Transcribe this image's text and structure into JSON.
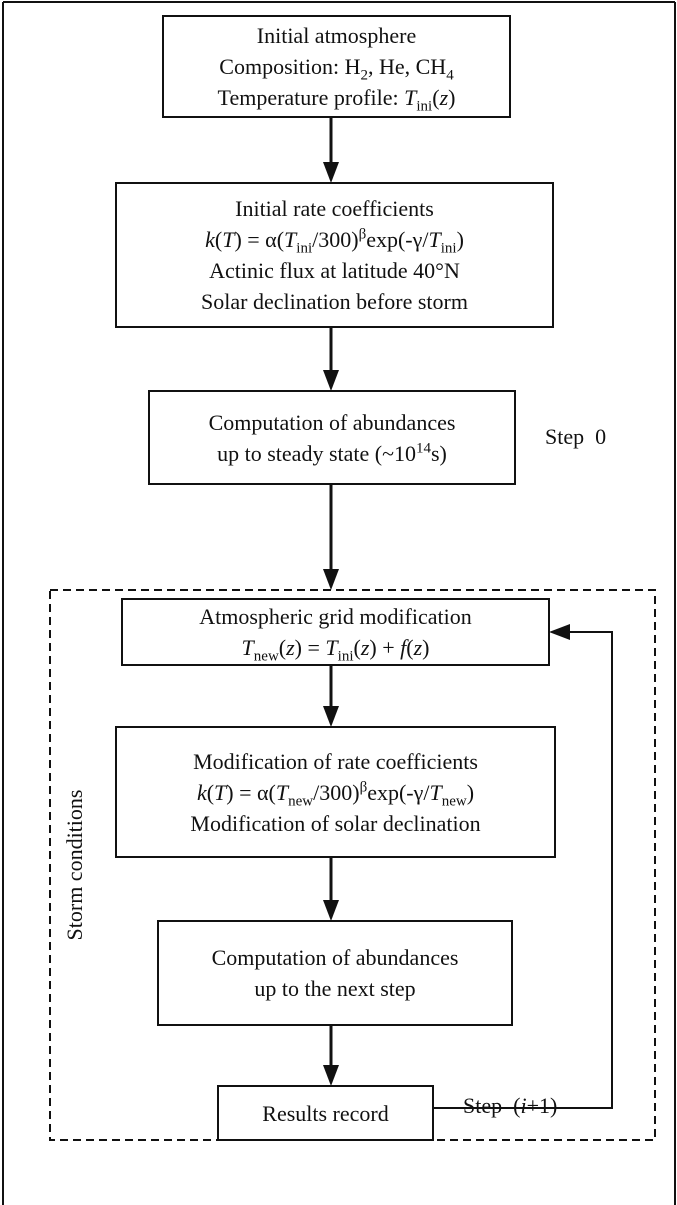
{
  "nodes": [
    {
      "lines": [
        [
          "Initial atmosphere"
        ],
        [
          "Composition: H",
          "2",
          ", He, CH",
          "4"
        ],
        [
          "Temperature profile: ",
          "T",
          "ini",
          "(",
          "z",
          ")"
        ]
      ]
    },
    {
      "lines": [
        [
          "Initial rate coefficients"
        ],
        [
          "k",
          "(",
          "T",
          ") = α(",
          "T",
          "ini",
          "/300)",
          "β",
          "exp(-γ/",
          "T",
          "ini",
          ")"
        ],
        [
          "Actinic flux at latitude 40°N"
        ],
        [
          "Solar declination before storm"
        ]
      ]
    },
    {
      "lines": [
        [
          "Computation of abundances"
        ],
        [
          "up to steady state (~10",
          "14",
          "s)"
        ]
      ]
    },
    {
      "lines": [
        [
          "Atmospheric grid modification"
        ],
        [
          "T",
          "new",
          "(",
          "z",
          ") = ",
          "T",
          "ini",
          "(",
          "z",
          ") + ",
          "f",
          "(",
          "z",
          ")"
        ]
      ]
    },
    {
      "lines": [
        [
          "Modification of rate coefficients"
        ],
        [
          "k",
          "(",
          "T",
          ") = α(",
          "T",
          "new",
          "/300)",
          "β",
          "exp(-γ/",
          "T",
          "new",
          ")"
        ],
        [
          "Modification of solar declination"
        ]
      ]
    },
    {
      "lines": [
        [
          "Computation of abundances"
        ],
        [
          "up to the next step"
        ]
      ]
    },
    {
      "lines": [
        [
          "Results record"
        ]
      ]
    }
  ],
  "labels": {
    "step0": "Step  0",
    "step_next": [
      "Step  (",
      "i",
      "+1)"
    ],
    "storm": "Storm conditions"
  }
}
